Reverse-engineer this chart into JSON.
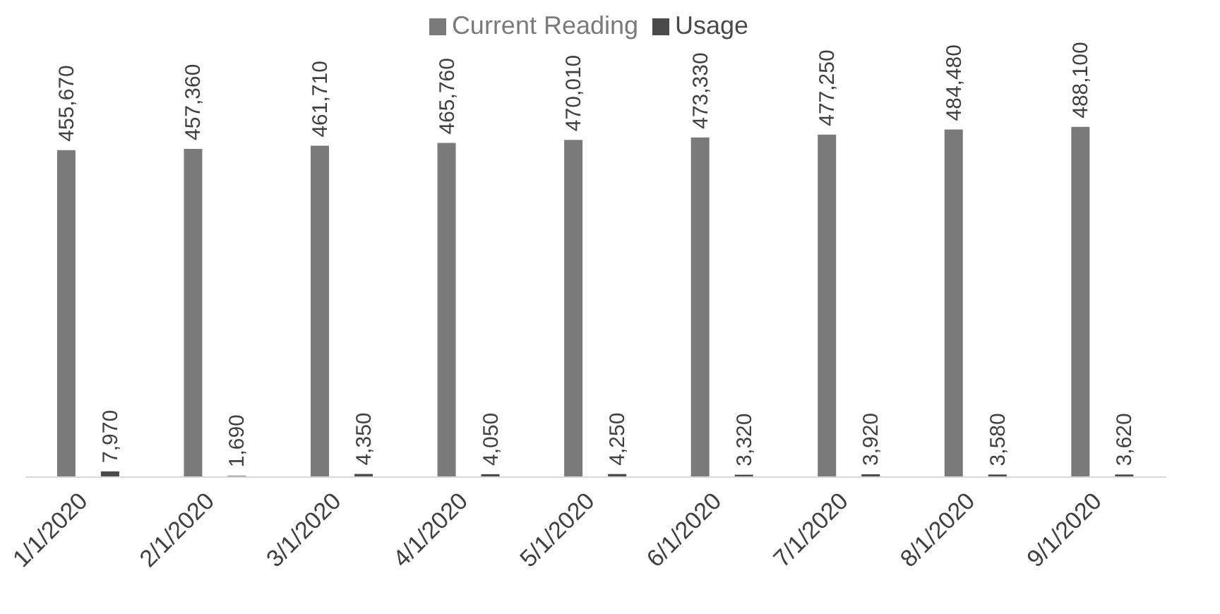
{
  "chart_data": {
    "type": "bar",
    "categories": [
      "1/1/2020",
      "2/1/2020",
      "3/1/2020",
      "4/1/2020",
      "5/1/2020",
      "6/1/2020",
      "7/1/2020",
      "8/1/2020",
      "9/1/2020"
    ],
    "series": [
      {
        "name": "Current Reading",
        "color": "#7a7a7a",
        "values": [
          455670,
          457360,
          461710,
          465760,
          470010,
          473330,
          477250,
          484480,
          488100
        ],
        "value_labels": [
          "455,670",
          "457,360",
          "461,710",
          "465,760",
          "470,010",
          "473,330",
          "477,250",
          "484,480",
          "488,100"
        ]
      },
      {
        "name": "Usage",
        "color": "#4a4a4a",
        "values": [
          7970,
          1690,
          4350,
          4050,
          4250,
          3320,
          3920,
          3580,
          3620
        ],
        "value_labels": [
          "7,970",
          "1,690",
          "4,350",
          "4,050",
          "4,250",
          "3,320",
          "3,920",
          "3,580",
          "3,620"
        ]
      }
    ],
    "legend": "top",
    "grid": false
  }
}
